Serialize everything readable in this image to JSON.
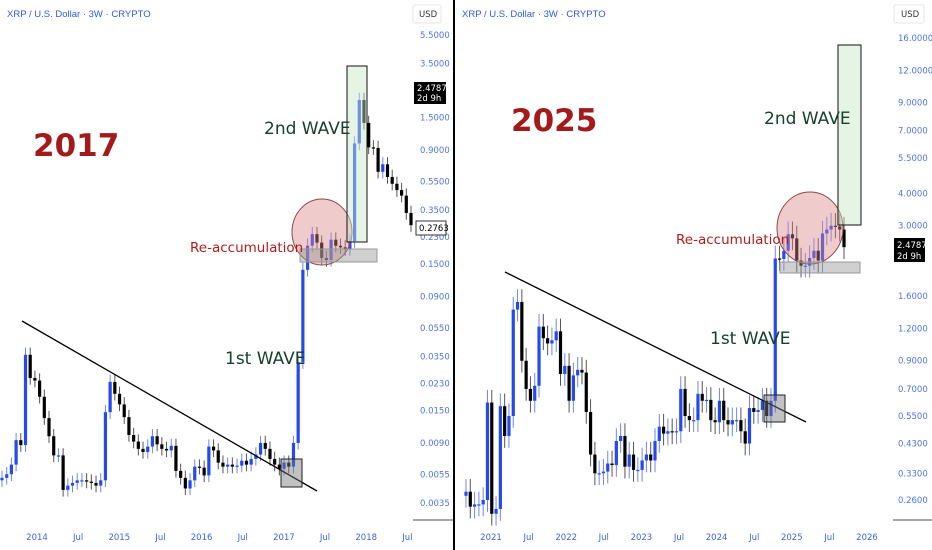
{
  "colors": {
    "up": "#2449f2",
    "down": "#000000",
    "trendline": "#000000",
    "axis_text": "#4f73e6"
  },
  "chart_data": [
    {
      "type": "candlestick",
      "title": "XRP / U.S. Dollar · 3W · CRYPTO",
      "scale": "log",
      "currency": "USD",
      "annotation_year": "2017",
      "labels": {
        "wave2": "2nd WAVE",
        "wave1": "1st WAVE",
        "reacc": "Re-accumulation"
      },
      "price_ticks": [
        5.5,
        3.5,
        1.5,
        0.9,
        0.55,
        0.35,
        0.23,
        0.15,
        0.09,
        0.055,
        0.035,
        0.023,
        0.015,
        0.009,
        0.0055,
        0.0035
      ],
      "price_tick_labels": [
        "5.5000",
        "3.5000",
        "1.5000",
        "0.9000",
        "0.5500",
        "0.3500",
        "0.2300",
        "0.1500",
        "0.0900",
        "0.0550",
        "0.0350",
        "0.0230",
        "0.0150",
        "0.0090",
        "0.0055",
        "0.0035"
      ],
      "time_ticks": [
        {
          "t": 2014,
          "label": "2014"
        },
        {
          "t": 2014.5,
          "label": "Jul"
        },
        {
          "t": 2015,
          "label": "2015"
        },
        {
          "t": 2015.5,
          "label": "Jul"
        },
        {
          "t": 2016,
          "label": "2016"
        },
        {
          "t": 2016.5,
          "label": "Jul"
        },
        {
          "t": 2017,
          "label": "2017"
        },
        {
          "t": 2017.5,
          "label": "Jul"
        },
        {
          "t": 2018,
          "label": "2018"
        },
        {
          "t": 2018.5,
          "label": "Jul"
        }
      ],
      "last_price_tag": {
        "price": "2.4787",
        "countdown": "2d 9h"
      },
      "current_price_tag": "0.2763",
      "first_open": 0.005,
      "closes": [
        0.0052,
        0.0055,
        0.0064,
        0.0094,
        0.0087,
        0.036,
        0.025,
        0.024,
        0.0186,
        0.0133,
        0.01,
        0.0074,
        0.0074,
        0.0043,
        0.0046,
        0.0048,
        0.005,
        0.005,
        0.0049,
        0.0048,
        0.0046,
        0.005,
        0.0146,
        0.0235,
        0.0195,
        0.0165,
        0.0135,
        0.0102,
        0.0092,
        0.0082,
        0.0078,
        0.0085,
        0.01,
        0.0088,
        0.0082,
        0.008,
        0.0086,
        0.0058,
        0.0052,
        0.0044,
        0.005,
        0.0062,
        0.0061,
        0.0054,
        0.0085,
        0.008,
        0.0066,
        0.0062,
        0.0064,
        0.0062,
        0.0063,
        0.0068,
        0.0064,
        0.007,
        0.0075,
        0.009,
        0.0082,
        0.007,
        0.0064,
        0.006,
        0.0066,
        0.0062,
        0.009,
        0.032,
        0.137,
        0.2,
        0.24,
        0.21,
        0.165,
        0.16,
        0.22,
        0.2,
        0.195,
        0.19,
        0.215,
        1.0,
        1.98,
        1.38,
        0.94,
        0.93,
        0.64,
        0.72,
        0.59,
        0.53,
        0.48,
        0.44,
        0.335,
        0.2763
      ]
    },
    {
      "type": "candlestick",
      "title": "XRP / U.S. Dollar · 3W · CRYPTO",
      "scale": "log",
      "currency": "USD",
      "annotation_year": "2025",
      "labels": {
        "wave2": "2nd WAVE",
        "wave1": "1st WAVE",
        "reacc": "Re-accumulation"
      },
      "price_ticks": [
        16,
        12,
        9,
        7,
        5.5,
        4,
        3,
        1.6,
        1.2,
        0.9,
        0.7,
        0.55,
        0.43,
        0.33,
        0.26
      ],
      "price_tick_labels": [
        "16.0000",
        "12.0000",
        "9.0000",
        "7.0000",
        "5.5000",
        "4.0000",
        "3.0000",
        "1.6000",
        "1.2000",
        "0.9000",
        "0.7000",
        "0.5500",
        "0.4300",
        "0.3300",
        "0.2600"
      ],
      "time_ticks": [
        {
          "t": 2021,
          "label": "2021"
        },
        {
          "t": 2021.5,
          "label": "Jul"
        },
        {
          "t": 2022,
          "label": "2022"
        },
        {
          "t": 2022.5,
          "label": "Jul"
        },
        {
          "t": 2023,
          "label": "2023"
        },
        {
          "t": 2023.5,
          "label": "Jul"
        },
        {
          "t": 2024,
          "label": "2024"
        },
        {
          "t": 2024.5,
          "label": "Jul"
        },
        {
          "t": 2025,
          "label": "2025"
        },
        {
          "t": 2025.5,
          "label": "Jul"
        },
        {
          "t": 2026,
          "label": "2026"
        }
      ],
      "last_price_tag": {
        "price": "2.4787",
        "countdown": "2d 9h"
      },
      "first_open": 0.27,
      "closes": [
        0.28,
        0.245,
        0.25,
        0.25,
        0.26,
        0.62,
        0.23,
        0.24,
        0.6,
        0.46,
        0.55,
        1.42,
        1.52,
        0.9,
        0.7,
        0.63,
        0.72,
        1.22,
        1.1,
        1.05,
        1.08,
        1.17,
        0.8,
        0.86,
        0.63,
        0.79,
        0.83,
        0.81,
        0.57,
        0.39,
        0.33,
        0.33,
        0.335,
        0.36,
        0.355,
        0.44,
        0.46,
        0.35,
        0.39,
        0.34,
        0.34,
        0.37,
        0.39,
        0.37,
        0.44,
        0.5,
        0.47,
        0.48,
        0.475,
        0.48,
        0.7,
        0.55,
        0.53,
        0.53,
        0.67,
        0.63,
        0.635,
        0.53,
        0.52,
        0.63,
        0.53,
        0.51,
        0.53,
        0.53,
        0.48,
        0.43,
        0.59,
        0.57,
        0.58,
        0.63,
        0.55,
        0.63,
        2.24,
        2.23,
        2.4,
        2.78,
        2.68,
        2.2,
        2.1,
        2.1,
        2.25,
        2.4,
        2.2,
        2.8,
        2.9,
        3.0,
        2.98,
        2.9,
        2.4787
      ]
    }
  ]
}
